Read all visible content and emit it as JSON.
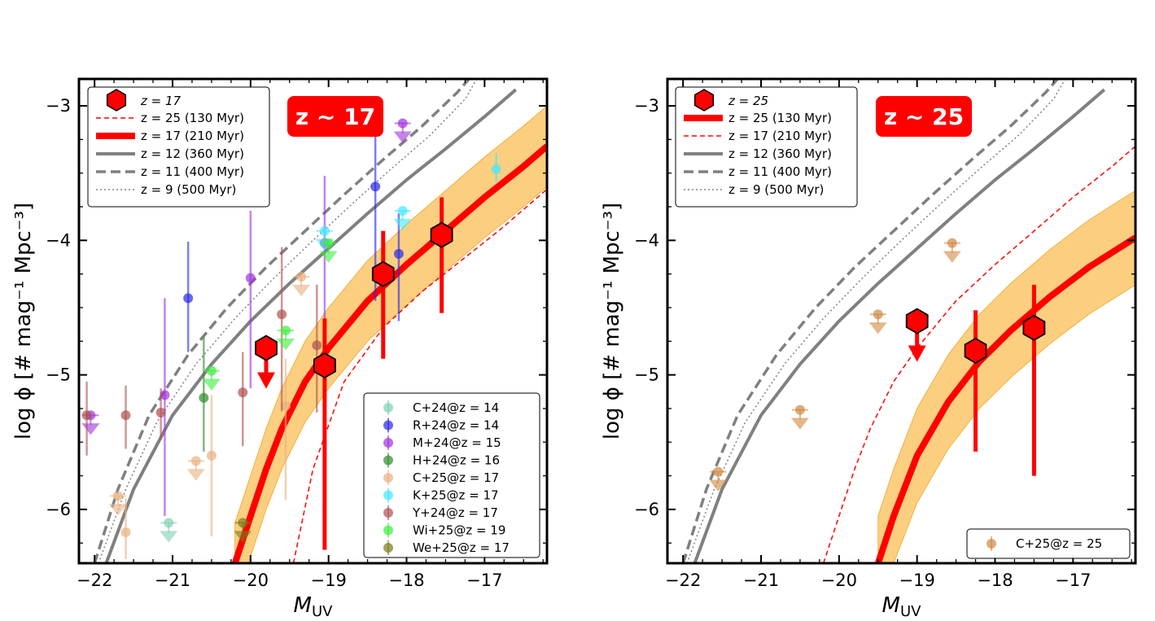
{
  "chart_data": [
    {
      "type": "scatter",
      "panel": "left",
      "badge": "z ~ 17",
      "xlabel": "M_UV",
      "ylabel": "log ϕ [# mag⁻¹ Mpc⁻³]",
      "xlim": [
        -22.2,
        -16.2
      ],
      "ylim": [
        -6.4,
        -2.8
      ],
      "xticks": [
        -22,
        -21,
        -20,
        -19,
        -18,
        -17
      ],
      "yticks": [
        -6,
        -5,
        -4,
        -3
      ],
      "xtick_labels": [
        "−22",
        "−21",
        "−20",
        "−19",
        "−18",
        "−17"
      ],
      "ytick_labels": [
        "−6",
        "−5",
        "−4",
        "−3"
      ],
      "grid": false,
      "models": [
        {
          "label": "z = 25 (130 Myr)",
          "color": "#ff0000",
          "style": "dashed-thin",
          "points": [
            [
              -19.45,
              -6.4
            ],
            [
              -19.2,
              -5.7
            ],
            [
              -18.8,
              -5.05
            ],
            [
              -18.3,
              -4.65
            ],
            [
              -17.8,
              -4.38
            ],
            [
              -17.3,
              -4.15
            ],
            [
              -16.8,
              -3.92
            ],
            [
              -16.2,
              -3.62
            ]
          ]
        },
        {
          "label": "z = 17 (210 Myr)",
          "color": "#ff0000",
          "style": "thick",
          "band": [
            0.3,
            0.3
          ],
          "points": [
            [
              -20.2,
              -6.4
            ],
            [
              -20.0,
              -6.05
            ],
            [
              -19.8,
              -5.7
            ],
            [
              -19.6,
              -5.4
            ],
            [
              -19.3,
              -5.05
            ],
            [
              -19.0,
              -4.8
            ],
            [
              -18.5,
              -4.45
            ],
            [
              -18.0,
              -4.18
            ],
            [
              -17.5,
              -3.93
            ],
            [
              -17.0,
              -3.68
            ],
            [
              -16.5,
              -3.45
            ],
            [
              -16.2,
              -3.3
            ]
          ]
        },
        {
          "label": "z = 12 (360 Myr)",
          "color": "#808080",
          "style": "solid",
          "points": [
            [
              -21.85,
              -6.4
            ],
            [
              -21.5,
              -5.85
            ],
            [
              -21.0,
              -5.3
            ],
            [
              -20.5,
              -4.92
            ],
            [
              -20.0,
              -4.6
            ],
            [
              -19.5,
              -4.32
            ],
            [
              -19.0,
              -4.06
            ],
            [
              -18.5,
              -3.8
            ],
            [
              -18.0,
              -3.55
            ],
            [
              -17.5,
              -3.32
            ],
            [
              -17.0,
              -3.08
            ],
            [
              -16.6,
              -2.88
            ]
          ]
        },
        {
          "label": "z = 11 (400 Myr)",
          "color": "#808080",
          "style": "dashed",
          "points": [
            [
              -22.0,
              -6.4
            ],
            [
              -21.7,
              -5.85
            ],
            [
              -21.3,
              -5.3
            ],
            [
              -20.8,
              -4.85
            ],
            [
              -20.3,
              -4.5
            ],
            [
              -19.8,
              -4.2
            ],
            [
              -19.3,
              -3.93
            ],
            [
              -18.8,
              -3.66
            ],
            [
              -18.3,
              -3.4
            ],
            [
              -17.8,
              -3.15
            ],
            [
              -17.35,
              -2.9
            ],
            [
              -17.2,
              -2.8
            ]
          ]
        },
        {
          "label": "z = 9 (500 Myr)",
          "color": "#808080",
          "style": "dotted",
          "points": [
            [
              -21.95,
              -6.4
            ],
            [
              -21.6,
              -5.85
            ],
            [
              -21.2,
              -5.35
            ],
            [
              -20.7,
              -4.92
            ],
            [
              -20.2,
              -4.58
            ],
            [
              -19.7,
              -4.28
            ],
            [
              -19.2,
              -4.0
            ],
            [
              -18.7,
              -3.73
            ],
            [
              -18.2,
              -3.47
            ],
            [
              -17.7,
              -3.22
            ],
            [
              -17.25,
              -2.95
            ],
            [
              -17.1,
              -2.8
            ]
          ]
        }
      ],
      "highlight_points": [
        {
          "x": -19.8,
          "y": -4.8,
          "upper_limit": true
        },
        {
          "x": -19.05,
          "y": -4.93,
          "yerr": [
            1.37,
            0.35
          ]
        },
        {
          "x": -18.3,
          "y": -4.25,
          "yerr": [
            0.63,
            0.32
          ]
        },
        {
          "x": -17.55,
          "y": -3.96,
          "yerr": [
            0.58,
            0.28
          ]
        }
      ],
      "legend_models": {
        "marker_label": "z = 17",
        "entries": [
          "z = 25 (130 Myr)",
          "z = 17 (210 Myr)",
          "z = 12 (360 Myr)",
          "z = 11 (400 Myr)",
          "z = 9 (500 Myr)"
        ]
      },
      "series": [
        {
          "name": "C+24@z = 14",
          "color": "#7fd1b0",
          "points": [
            {
              "x": -21.05,
              "y": -6.1,
              "upper_limit": true
            }
          ]
        },
        {
          "name": "R+24@z = 14",
          "color": "#2828e8",
          "points": [
            {
              "x": -20.8,
              "y": -4.43,
              "yerr": [
                0.4,
                0.42
              ]
            },
            {
              "x": -18.4,
              "y": -3.6,
              "yerr": [
                0.85,
                0.55
              ]
            },
            {
              "x": -18.1,
              "y": -4.1,
              "yerr": [
                0.5,
                0.3
              ]
            }
          ]
        },
        {
          "name": "M+24@z = 15",
          "color": "#a030e0",
          "points": [
            {
              "x": -22.05,
              "y": -5.3,
              "upper_limit": true
            },
            {
              "x": -21.1,
              "y": -5.15,
              "yerr": [
                0.9,
                0.72
              ]
            },
            {
              "x": -20.0,
              "y": -4.28,
              "yerr": [
                0.82,
                0.5
              ]
            },
            {
              "x": -19.05,
              "y": -4.02,
              "yerr": [
                0.6,
                0.5
              ]
            },
            {
              "x": -18.05,
              "y": -3.13,
              "upper_limit": true
            }
          ]
        },
        {
          "name": "H+24@z = 16",
          "color": "#2e8b2e",
          "points": [
            {
              "x": -20.6,
              "y": -5.17,
              "yerr": [
                0.4,
                0.45
              ]
            }
          ]
        },
        {
          "name": "C+25@z = 17",
          "color": "#e8b080",
          "points": [
            {
              "x": -21.7,
              "y": -5.9,
              "upper_limit": true
            },
            {
              "x": -21.6,
              "y": -6.17,
              "yerr": [
                0.2,
                0.25
              ]
            },
            {
              "x": -20.7,
              "y": -5.64,
              "upper_limit": true
            },
            {
              "x": -20.5,
              "y": -5.6,
              "yerr": [
                0.6,
                0.45
              ]
            },
            {
              "x": -19.55,
              "y": -5.23,
              "yerr": [
                0.7,
                0.35
              ]
            },
            {
              "x": -19.35,
              "y": -4.27,
              "upper_limit": true
            }
          ]
        },
        {
          "name": "K+25@z = 17",
          "color": "#40e8ff",
          "points": [
            {
              "x": -19.05,
              "y": -3.93,
              "upper_limit": true
            },
            {
              "x": -18.05,
              "y": -3.78,
              "upper_limit": true
            },
            {
              "x": -16.85,
              "y": -3.47,
              "yerr": [
                0.1,
                0.12
              ]
            }
          ]
        },
        {
          "name": "Y+24@z = 17",
          "color": "#b05050",
          "points": [
            {
              "x": -22.1,
              "y": -5.3,
              "yerr": [
                0.3,
                0.25
              ]
            },
            {
              "x": -21.6,
              "y": -5.3,
              "yerr": [
                0.25,
                0.22
              ]
            },
            {
              "x": -21.15,
              "y": -5.28,
              "yerr": [
                0.2,
                0.18
              ]
            },
            {
              "x": -20.1,
              "y": -5.13,
              "yerr": [
                0.4,
                0.3
              ]
            },
            {
              "x": -19.6,
              "y": -4.55,
              "yerr": [
                0.72,
                0.5
              ]
            },
            {
              "x": -19.15,
              "y": -4.78,
              "yerr": [
                0.5,
                0.45
              ]
            }
          ]
        },
        {
          "name": "Wi+25@z = 19",
          "color": "#3aee3a",
          "points": [
            {
              "x": -20.5,
              "y": -4.97,
              "upper_limit": true
            },
            {
              "x": -19.55,
              "y": -4.67,
              "upper_limit": true
            },
            {
              "x": -19.0,
              "y": -4.02,
              "upper_limit": true
            }
          ]
        },
        {
          "name": "We+25@z = 17",
          "color": "#7a7a1a",
          "points": [
            {
              "x": -20.1,
              "y": -6.1,
              "upper_limit": true
            }
          ]
        }
      ]
    },
    {
      "type": "scatter",
      "panel": "right",
      "badge": "z ~ 25",
      "xlabel": "M_UV",
      "ylabel": "log ϕ [# mag⁻¹ Mpc⁻³]",
      "xlim": [
        -22.2,
        -16.2
      ],
      "ylim": [
        -6.4,
        -2.8
      ],
      "xticks": [
        -22,
        -21,
        -20,
        -19,
        -18,
        -17
      ],
      "yticks": [
        -6,
        -5,
        -4,
        -3
      ],
      "xtick_labels": [
        "−22",
        "−21",
        "−20",
        "−19",
        "−18",
        "−17"
      ],
      "ytick_labels": [
        "−6",
        "−5",
        "−4",
        "−3"
      ],
      "grid": false,
      "models": [
        {
          "label": "z = 25 (130 Myr)",
          "color": "#ff0000",
          "style": "thick",
          "band": [
            0.35,
            0.35
          ],
          "points": [
            [
              -19.5,
              -6.4
            ],
            [
              -19.3,
              -6.05
            ],
            [
              -19.0,
              -5.6
            ],
            [
              -18.6,
              -5.2
            ],
            [
              -18.2,
              -4.9
            ],
            [
              -17.8,
              -4.67
            ],
            [
              -17.3,
              -4.42
            ],
            [
              -16.8,
              -4.2
            ],
            [
              -16.2,
              -3.98
            ]
          ]
        },
        {
          "label": "z = 17 (210 Myr)",
          "color": "#ff0000",
          "style": "dashed-thin",
          "points": [
            [
              -20.2,
              -6.4
            ],
            [
              -20.0,
              -6.05
            ],
            [
              -19.8,
              -5.7
            ],
            [
              -19.6,
              -5.4
            ],
            [
              -19.3,
              -5.05
            ],
            [
              -19.0,
              -4.8
            ],
            [
              -18.5,
              -4.45
            ],
            [
              -18.0,
              -4.18
            ],
            [
              -17.5,
              -3.93
            ],
            [
              -17.0,
              -3.68
            ],
            [
              -16.5,
              -3.45
            ],
            [
              -16.2,
              -3.3
            ]
          ]
        },
        {
          "label": "z = 12 (360 Myr)",
          "color": "#808080",
          "style": "solid",
          "points": [
            [
              -21.85,
              -6.4
            ],
            [
              -21.5,
              -5.85
            ],
            [
              -21.0,
              -5.3
            ],
            [
              -20.5,
              -4.92
            ],
            [
              -20.0,
              -4.6
            ],
            [
              -19.5,
              -4.32
            ],
            [
              -19.0,
              -4.06
            ],
            [
              -18.5,
              -3.8
            ],
            [
              -18.0,
              -3.55
            ],
            [
              -17.5,
              -3.32
            ],
            [
              -17.0,
              -3.08
            ],
            [
              -16.6,
              -2.88
            ]
          ]
        },
        {
          "label": "z = 11 (400 Myr)",
          "color": "#808080",
          "style": "dashed",
          "points": [
            [
              -22.0,
              -6.4
            ],
            [
              -21.7,
              -5.85
            ],
            [
              -21.3,
              -5.3
            ],
            [
              -20.8,
              -4.85
            ],
            [
              -20.3,
              -4.5
            ],
            [
              -19.8,
              -4.2
            ],
            [
              -19.3,
              -3.93
            ],
            [
              -18.8,
              -3.66
            ],
            [
              -18.3,
              -3.4
            ],
            [
              -17.8,
              -3.15
            ],
            [
              -17.35,
              -2.9
            ],
            [
              -17.2,
              -2.8
            ]
          ]
        },
        {
          "label": "z = 9 (500 Myr)",
          "color": "#808080",
          "style": "dotted",
          "points": [
            [
              -21.95,
              -6.4
            ],
            [
              -21.6,
              -5.85
            ],
            [
              -21.2,
              -5.35
            ],
            [
              -20.7,
              -4.92
            ],
            [
              -20.2,
              -4.58
            ],
            [
              -19.7,
              -4.28
            ],
            [
              -19.2,
              -4.0
            ],
            [
              -18.7,
              -3.73
            ],
            [
              -18.2,
              -3.47
            ],
            [
              -17.7,
              -3.22
            ],
            [
              -17.25,
              -2.95
            ],
            [
              -17.1,
              -2.8
            ]
          ]
        }
      ],
      "highlight_points": [
        {
          "x": -19.0,
          "y": -4.6,
          "upper_limit": true
        },
        {
          "x": -18.25,
          "y": -4.82,
          "yerr": [
            0.75,
            0.3
          ]
        },
        {
          "x": -17.5,
          "y": -4.65,
          "yerr": [
            1.1,
            0.32
          ]
        }
      ],
      "legend_models": {
        "marker_label": "z = 25",
        "entries": [
          "z = 25 (130 Myr)",
          "z = 17 (210 Myr)",
          "z = 12 (360 Myr)",
          "z = 11 (400 Myr)",
          "z = 9 (500 Myr)"
        ]
      },
      "series": [
        {
          "name": "C+25@z = 25",
          "color": "#d08840",
          "points": [
            {
              "x": -21.55,
              "y": -5.72,
              "upper_limit": true
            },
            {
              "x": -20.5,
              "y": -5.26,
              "upper_limit": true
            },
            {
              "x": -19.5,
              "y": -4.55,
              "upper_limit": true
            },
            {
              "x": -18.55,
              "y": -4.02,
              "upper_limit": true
            }
          ]
        }
      ]
    }
  ]
}
